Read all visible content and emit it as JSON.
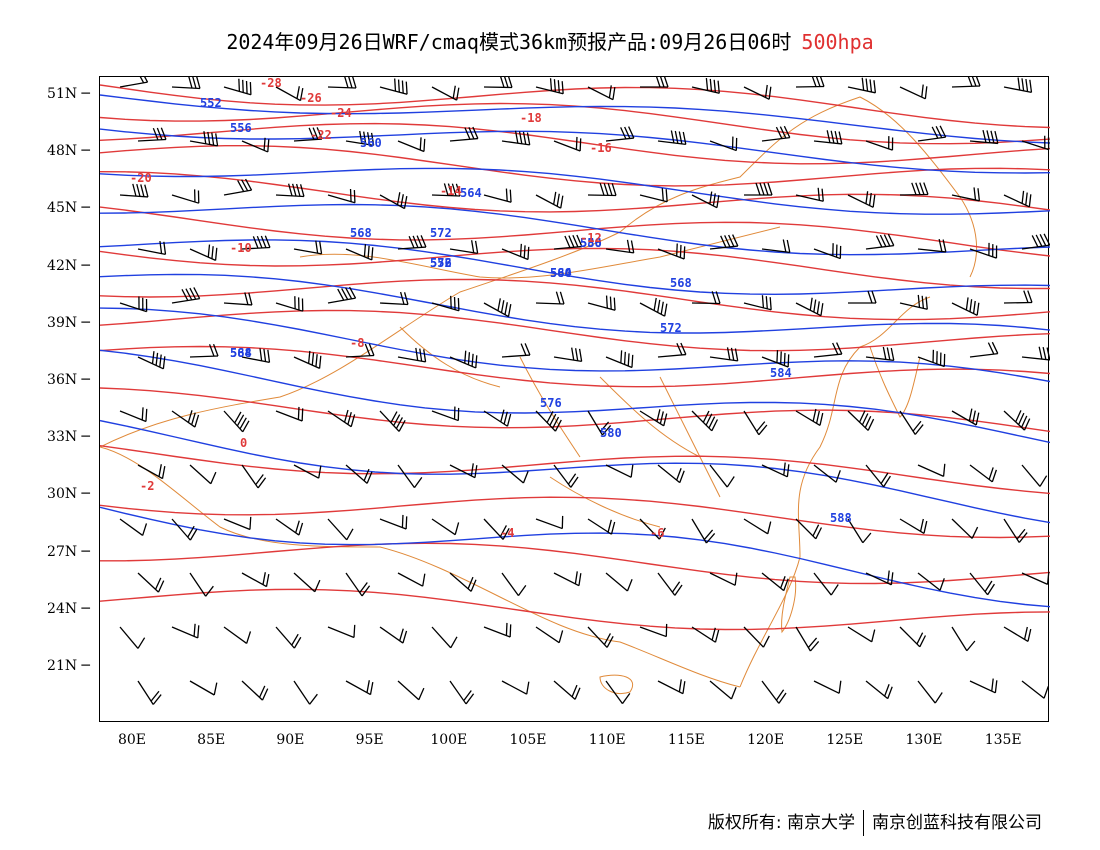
{
  "title": {
    "main": "2024年09月26日WRF/cmaq模式36km预报产品:09月26日06时",
    "level": "500hpa"
  },
  "colors": {
    "height_contour": "#2040e0",
    "temperature_contour": "#e03a3a",
    "border": "#e08a3a",
    "wind_barb": "#000000",
    "level_text": "#e03030"
  },
  "axes": {
    "lon_labels": [
      "80E",
      "85E",
      "90E",
      "95E",
      "100E",
      "105E",
      "110E",
      "115E",
      "120E",
      "125E",
      "130E",
      "135E"
    ],
    "lat_labels": [
      "51N",
      "48N",
      "45N",
      "42N",
      "39N",
      "36N",
      "33N",
      "30N",
      "27N",
      "24N",
      "21N"
    ]
  },
  "height_labels": [
    "552",
    "556",
    "560",
    "564",
    "568",
    "572",
    "576",
    "580",
    "584",
    "588"
  ],
  "temperature_labels": [
    "-28",
    "-26",
    "-24",
    "-22",
    "-20",
    "-18",
    "-16",
    "-14",
    "-12",
    "-10",
    "-8",
    "-6",
    "-4",
    "-2",
    "0"
  ],
  "footer": {
    "left": "版权所有: 南京大学",
    "right": "南京创蓝科技有限公司"
  }
}
